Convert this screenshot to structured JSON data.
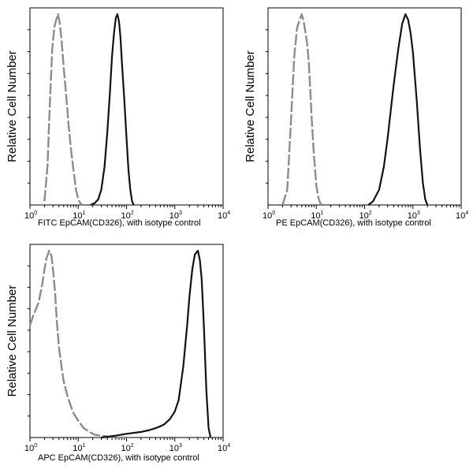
{
  "chart_data": [
    {
      "type": "line",
      "scale": "log",
      "xlim": [
        1,
        10000
      ],
      "ylabel": "Relative Cell Number",
      "xlabel": "FITC  EpCAM(CD326),  with isotype control",
      "x_ticks": [
        "10",
        "10",
        "10",
        "10",
        "10"
      ],
      "x_tick_exponents": [
        "0",
        "1",
        "2",
        "3",
        "4"
      ],
      "series": [
        {
          "style": "dashed",
          "color": "#8c8c8c",
          "x": [
            2.0,
            2.3,
            2.6,
            2.9,
            3.2,
            3.5,
            3.8,
            4.1,
            4.5,
            5.0,
            5.6,
            6.3,
            7.0,
            8.0,
            9.0,
            10.0,
            11.0,
            12.0
          ],
          "y": [
            0.02,
            0.2,
            0.55,
            0.82,
            0.93,
            0.97,
            1.0,
            0.96,
            0.87,
            0.72,
            0.58,
            0.42,
            0.3,
            0.18,
            0.08,
            0.03,
            0.01,
            0.0
          ]
        },
        {
          "style": "solid",
          "color": "#111111",
          "x": [
            18,
            22,
            26,
            30,
            35,
            40,
            45,
            50,
            55,
            60,
            65,
            70,
            75,
            80,
            90,
            100,
            110,
            120,
            130,
            140
          ],
          "y": [
            0.0,
            0.01,
            0.03,
            0.08,
            0.2,
            0.38,
            0.58,
            0.78,
            0.9,
            0.98,
            1.0,
            0.96,
            0.88,
            0.75,
            0.55,
            0.35,
            0.18,
            0.08,
            0.02,
            0.0
          ]
        }
      ]
    },
    {
      "type": "line",
      "scale": "log",
      "xlim": [
        1,
        10000
      ],
      "ylabel": "Relative Cell Number",
      "xlabel": "PE  EpCAM(CD326),  with isotype control",
      "x_ticks": [
        "10",
        "10",
        "10",
        "10",
        "10"
      ],
      "x_tick_exponents": [
        "0",
        "1",
        "2",
        "3",
        "4"
      ],
      "series": [
        {
          "style": "dashed",
          "color": "#8c8c8c",
          "x": [
            2.0,
            2.5,
            3.0,
            3.5,
            4.0,
            4.5,
            5.0,
            5.5,
            6.0,
            6.5,
            7.0,
            7.5,
            8.0,
            9.0,
            10.0,
            11.0,
            12.0,
            13.0,
            14.0
          ],
          "y": [
            0.0,
            0.08,
            0.45,
            0.78,
            0.93,
            0.97,
            1.0,
            0.96,
            0.9,
            0.84,
            0.74,
            0.6,
            0.46,
            0.25,
            0.1,
            0.04,
            0.01,
            0.0,
            0.0
          ]
        },
        {
          "style": "solid",
          "color": "#111111",
          "x": [
            120,
            150,
            200,
            250,
            300,
            350,
            400,
            500,
            600,
            700,
            800,
            900,
            1000,
            1200,
            1400,
            1600,
            1800,
            2000
          ],
          "y": [
            0.0,
            0.02,
            0.08,
            0.2,
            0.35,
            0.5,
            0.63,
            0.82,
            0.95,
            1.0,
            0.97,
            0.9,
            0.8,
            0.55,
            0.3,
            0.12,
            0.03,
            0.0
          ]
        }
      ]
    },
    {
      "type": "line",
      "scale": "log",
      "xlim": [
        1,
        10000
      ],
      "ylabel": "Relative Cell Number",
      "xlabel": "APC EpCAM(CD326), with isotype control",
      "x_ticks": [
        "10",
        "10",
        "10",
        "10",
        "10"
      ],
      "x_tick_exponents": [
        "0",
        "1",
        "2",
        "3",
        "4"
      ],
      "series": [
        {
          "style": "dashed",
          "color": "#8c8c8c",
          "x": [
            1.0,
            1.2,
            1.5,
            1.8,
            2.0,
            2.2,
            2.5,
            2.8,
            3.0,
            3.3,
            3.6,
            4.0,
            4.5,
            5.0,
            6.0,
            7.0,
            8.0,
            10.0,
            13.0,
            17.0,
            22.0,
            30.0,
            40.0,
            60.0,
            100.0
          ],
          "y": [
            0.6,
            0.66,
            0.72,
            0.82,
            0.9,
            0.96,
            1.0,
            0.97,
            0.9,
            0.78,
            0.62,
            0.48,
            0.38,
            0.3,
            0.22,
            0.17,
            0.13,
            0.09,
            0.05,
            0.03,
            0.015,
            0.01,
            0.005,
            0.0,
            0.0
          ]
        },
        {
          "style": "solid",
          "color": "#111111",
          "x": [
            30,
            60,
            100,
            200,
            300,
            400,
            500,
            600,
            800,
            1000,
            1200,
            1500,
            1800,
            2000,
            2300,
            2600,
            3000,
            3300,
            3600,
            4000,
            4500,
            5000,
            5500
          ],
          "y": [
            0.0,
            0.01,
            0.02,
            0.03,
            0.04,
            0.05,
            0.06,
            0.07,
            0.1,
            0.14,
            0.2,
            0.38,
            0.6,
            0.75,
            0.9,
            0.98,
            1.0,
            0.95,
            0.85,
            0.6,
            0.25,
            0.05,
            0.0
          ]
        }
      ]
    }
  ]
}
